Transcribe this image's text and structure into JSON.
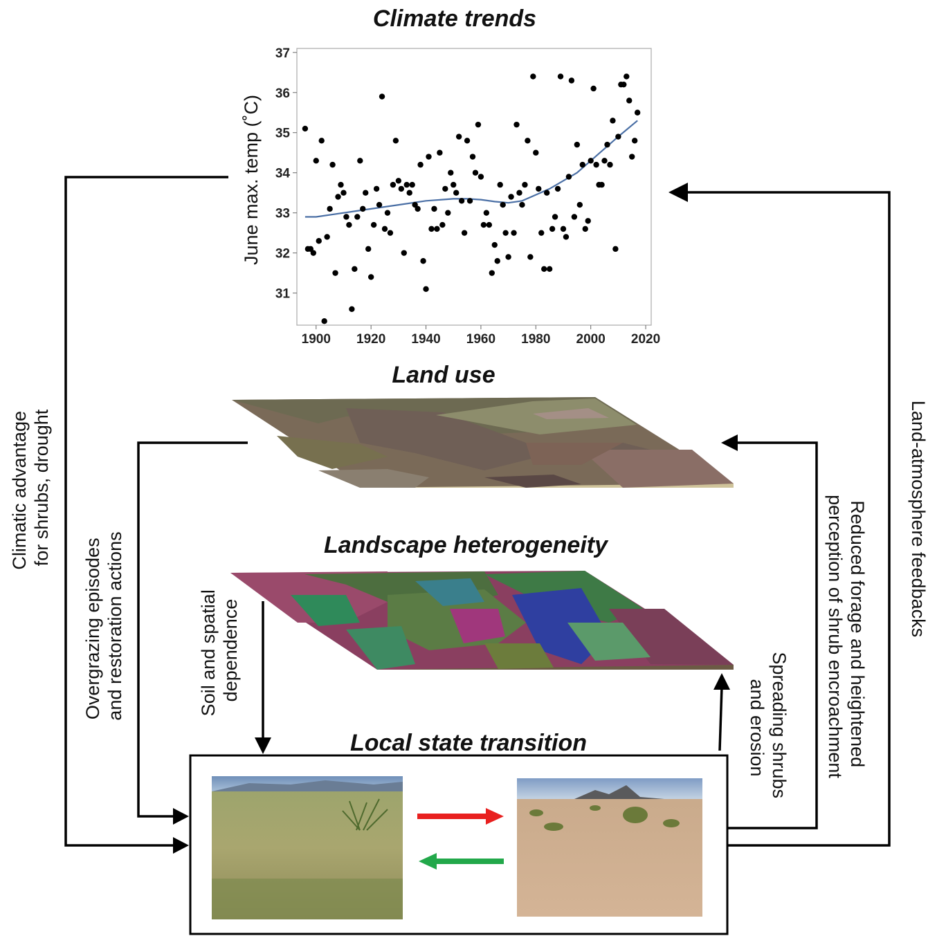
{
  "titles": {
    "climate": "Climate trends",
    "land_use": "Land use",
    "landscape": "Landscape heterogeneity",
    "local": "Local state transition"
  },
  "labels": {
    "left_outer": [
      "Climatic advantage",
      "for shrubs, drought"
    ],
    "left_inner": [
      "Overgrazing episodes",
      "and restoration actions"
    ],
    "soil": [
      "Soil and spatial",
      "dependence"
    ],
    "spreading": [
      "Spreading shrubs",
      "and erosion"
    ],
    "reduced": [
      "Reduced forage and heightened",
      "perception of shrub encroachment"
    ],
    "land_atm": "Land-atmosphere feedbacks"
  },
  "colors": {
    "trend_line": "#4a6fa5",
    "to_shrubland_arrow": "#e8201f",
    "to_grassland_arrow": "#22a84a",
    "points": "#000000"
  },
  "chart_data": {
    "type": "scatter",
    "title": "Climate trends",
    "xlabel": "",
    "ylabel": "June max. temp (˚C)",
    "xlim": [
      1893,
      2022
    ],
    "ylim": [
      30.2,
      37.1
    ],
    "xticks": [
      1900,
      1920,
      1940,
      1960,
      1980,
      2000,
      2020
    ],
    "yticks": [
      31,
      32,
      33,
      34,
      35,
      36,
      37
    ],
    "grid": false,
    "series": [
      {
        "type": "scatter",
        "x": [
          1896,
          1897,
          1898,
          1899,
          1900,
          1901,
          1902,
          1903,
          1904,
          1905,
          1906,
          1907,
          1908,
          1909,
          1910,
          1911,
          1912,
          1913,
          1914,
          1915,
          1916,
          1917,
          1918,
          1919,
          1920,
          1921,
          1922,
          1923,
          1924,
          1925,
          1926,
          1927,
          1928,
          1929,
          1930,
          1931,
          1932,
          1933,
          1934,
          1935,
          1936,
          1937,
          1938,
          1939,
          1940,
          1941,
          1942,
          1943,
          1944,
          1945,
          1946,
          1947,
          1948,
          1949,
          1950,
          1951,
          1952,
          1953,
          1954,
          1955,
          1956,
          1957,
          1958,
          1959,
          1960,
          1961,
          1962,
          1963,
          1964,
          1965,
          1966,
          1967,
          1968,
          1969,
          1970,
          1971,
          1972,
          1973,
          1974,
          1975,
          1976,
          1977,
          1978,
          1979,
          1980,
          1981,
          1982,
          1983,
          1984,
          1985,
          1986,
          1987,
          1988,
          1989,
          1990,
          1991,
          1992,
          1993,
          1994,
          1995,
          1996,
          1997,
          1998,
          1999,
          2000,
          2001,
          2002,
          2003,
          2004,
          2005,
          2006,
          2007,
          2008,
          2009,
          2010,
          2011,
          2012,
          2013,
          2014,
          2015,
          2016,
          2017
        ],
        "y": [
          35.1,
          32.1,
          32.1,
          32.0,
          34.3,
          32.3,
          34.8,
          30.3,
          32.4,
          33.1,
          34.2,
          31.5,
          33.4,
          33.7,
          33.5,
          32.9,
          32.7,
          30.6,
          31.6,
          32.9,
          34.3,
          33.1,
          33.5,
          32.1,
          31.4,
          32.7,
          33.6,
          33.2,
          35.9,
          32.6,
          33.0,
          32.5,
          33.7,
          34.8,
          33.8,
          33.6,
          32.0,
          33.7,
          33.5,
          33.7,
          33.2,
          33.1,
          34.2,
          31.8,
          31.1,
          34.4,
          32.6,
          33.1,
          32.6,
          34.5,
          32.7,
          33.6,
          33.0,
          34.0,
          33.7,
          33.5,
          34.9,
          33.3,
          32.5,
          34.8,
          33.3,
          34.4,
          34.0,
          35.2,
          33.9,
          32.7,
          33.0,
          32.7,
          31.5,
          32.2,
          31.8,
          33.7,
          33.2,
          32.5,
          31.9,
          33.4,
          32.5,
          35.2,
          33.5,
          33.2,
          33.7,
          34.8,
          31.9,
          36.4,
          34.5,
          33.6,
          32.5,
          31.6,
          33.5,
          31.6,
          32.6,
          32.9,
          33.6,
          36.4,
          32.6,
          32.4,
          33.9,
          36.3,
          32.9,
          34.7,
          33.2,
          34.2,
          32.6,
          32.8,
          34.3,
          36.1,
          34.2,
          33.7,
          33.7,
          34.3,
          34.7,
          34.2,
          35.3,
          32.1,
          34.9,
          36.2,
          36.2,
          36.4,
          35.8,
          34.4,
          34.8,
          35.5
        ]
      },
      {
        "type": "line",
        "name": "",
        "x": [
          1896,
          1900,
          1910,
          1920,
          1930,
          1940,
          1950,
          1955,
          1960,
          1965,
          1970,
          1975,
          1980,
          1985,
          1990,
          1995,
          2000,
          2005,
          2010,
          2017
        ],
        "y": [
          32.9,
          32.9,
          33.0,
          33.1,
          33.2,
          33.3,
          33.35,
          33.35,
          33.33,
          33.28,
          33.25,
          33.3,
          33.45,
          33.6,
          33.8,
          34.0,
          34.3,
          34.6,
          34.9,
          35.3
        ]
      }
    ]
  }
}
